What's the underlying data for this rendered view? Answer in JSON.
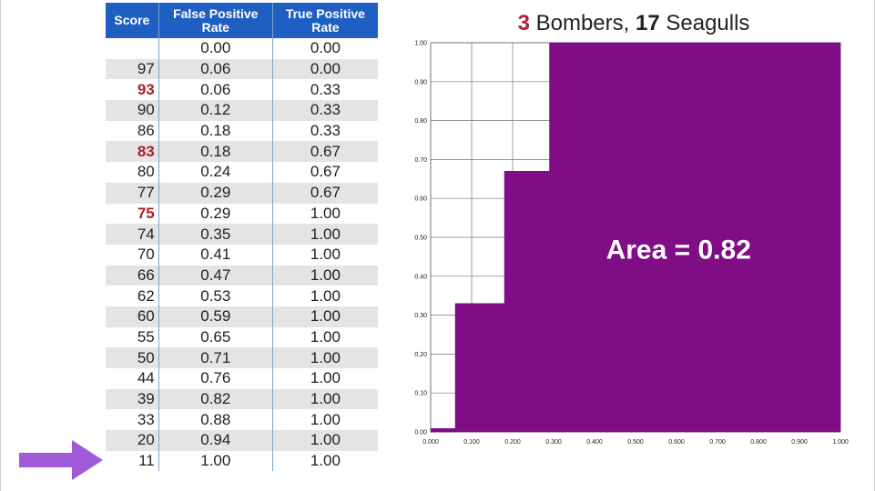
{
  "table": {
    "headers": {
      "score": "Score",
      "fpr_line1": "False Positive",
      "fpr_line2": "Rate",
      "tpr_line1": "True Positive",
      "tpr_line2": "Rate"
    },
    "rows": [
      {
        "score": "",
        "fpr": "0.00",
        "tpr": "0.00",
        "bomber": false
      },
      {
        "score": "97",
        "fpr": "0.06",
        "tpr": "0.00",
        "bomber": false
      },
      {
        "score": "93",
        "fpr": "0.06",
        "tpr": "0.33",
        "bomber": true
      },
      {
        "score": "90",
        "fpr": "0.12",
        "tpr": "0.33",
        "bomber": false
      },
      {
        "score": "86",
        "fpr": "0.18",
        "tpr": "0.33",
        "bomber": false
      },
      {
        "score": "83",
        "fpr": "0.18",
        "tpr": "0.67",
        "bomber": true
      },
      {
        "score": "80",
        "fpr": "0.24",
        "tpr": "0.67",
        "bomber": false
      },
      {
        "score": "77",
        "fpr": "0.29",
        "tpr": "0.67",
        "bomber": false
      },
      {
        "score": "75",
        "fpr": "0.29",
        "tpr": "1.00",
        "bomber": true
      },
      {
        "score": "74",
        "fpr": "0.35",
        "tpr": "1.00",
        "bomber": false
      },
      {
        "score": "70",
        "fpr": "0.41",
        "tpr": "1.00",
        "bomber": false
      },
      {
        "score": "66",
        "fpr": "0.47",
        "tpr": "1.00",
        "bomber": false
      },
      {
        "score": "62",
        "fpr": "0.53",
        "tpr": "1.00",
        "bomber": false
      },
      {
        "score": "60",
        "fpr": "0.59",
        "tpr": "1.00",
        "bomber": false
      },
      {
        "score": "55",
        "fpr": "0.65",
        "tpr": "1.00",
        "bomber": false
      },
      {
        "score": "50",
        "fpr": "0.71",
        "tpr": "1.00",
        "bomber": false
      },
      {
        "score": "44",
        "fpr": "0.76",
        "tpr": "1.00",
        "bomber": false
      },
      {
        "score": "39",
        "fpr": "0.82",
        "tpr": "1.00",
        "bomber": false
      },
      {
        "score": "33",
        "fpr": "0.88",
        "tpr": "1.00",
        "bomber": false
      },
      {
        "score": "20",
        "fpr": "0.94",
        "tpr": "1.00",
        "bomber": false
      },
      {
        "score": "11",
        "fpr": "1.00",
        "tpr": "1.00",
        "bomber": false
      }
    ]
  },
  "title": {
    "bombers_count": "3",
    "bombers_word": "Bombers,",
    "seagulls_count": "17",
    "seagulls_word": "Seagulls"
  },
  "colors": {
    "header_bg": "#1f5fc2",
    "bomber_text": "#b02020",
    "area_fill": "#7e0d86",
    "arrow": "#a05ad8"
  },
  "icons": {
    "pointer": "right-arrow-icon"
  },
  "chart_data": {
    "type": "area",
    "step": "post",
    "x": [
      0.0,
      0.06,
      0.12,
      0.18,
      0.24,
      0.29,
      0.35,
      0.41,
      0.47,
      0.53,
      0.59,
      0.65,
      0.71,
      0.76,
      0.82,
      0.88,
      0.94,
      1.0
    ],
    "y": [
      0.0,
      0.33,
      0.33,
      0.67,
      0.67,
      1.0,
      1.0,
      1.0,
      1.0,
      1.0,
      1.0,
      1.0,
      1.0,
      1.0,
      1.0,
      1.0,
      1.0,
      1.0
    ],
    "xlim": [
      0,
      1
    ],
    "ylim": [
      0,
      1
    ],
    "x_ticks": [
      "0.000",
      "0.100",
      "0.200",
      "0.300",
      "0.400",
      "0.500",
      "0.600",
      "0.700",
      "0.800",
      "0.900",
      "1.000"
    ],
    "y_ticks": [
      "0.00",
      "0.10",
      "0.20",
      "0.30",
      "0.40",
      "0.50",
      "0.60",
      "0.70",
      "0.80",
      "0.90",
      "1.00"
    ],
    "grid": true,
    "annotation": "Area = 0.82"
  }
}
